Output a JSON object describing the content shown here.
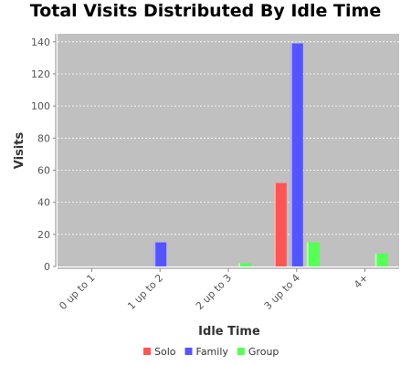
{
  "chart_data": {
    "type": "bar",
    "title": "Total Visits Distributed By Idle Time",
    "xlabel": "Idle Time",
    "ylabel": "Visits",
    "categories": [
      "0 up to 1",
      "1 up to 2",
      "2 up to 3",
      "3 up to 4",
      "4+"
    ],
    "series": [
      {
        "name": "Solo",
        "color": "#ff5555",
        "values": [
          0,
          0,
          0,
          52,
          0
        ]
      },
      {
        "name": "Family",
        "color": "#5555ff",
        "values": [
          0,
          15,
          0,
          139,
          0
        ]
      },
      {
        "name": "Group",
        "color": "#55ff55",
        "values": [
          0,
          0,
          2,
          15,
          8
        ]
      }
    ],
    "ylim": [
      0,
      145
    ],
    "yticks": [
      0,
      20,
      40,
      60,
      80,
      100,
      120,
      140
    ],
    "grid": true,
    "legend_position": "bottom",
    "plot_background": "#c0c0c0"
  }
}
